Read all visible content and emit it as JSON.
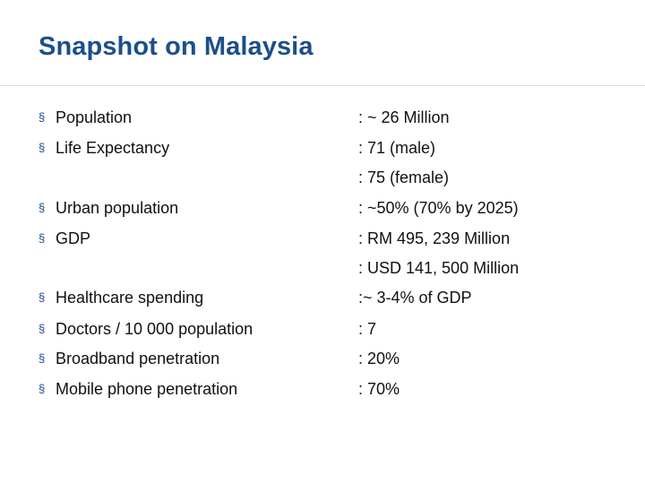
{
  "title": "Snapshot on Malaysia",
  "bullet_glyph": "§",
  "items": [
    {
      "label": "Population",
      "value": ": ~ 26 Million"
    },
    {
      "label": "Life Expectancy",
      "value": ": 71 (male)"
    },
    {
      "label": "",
      "value": ": 75 (female)"
    },
    {
      "label": "Urban population",
      "value": ": ~50% (70% by 2025)"
    },
    {
      "label": "GDP",
      "value": ": RM 495, 239 Million"
    },
    {
      "label": "",
      "value": ": USD 141, 500 Million"
    },
    {
      "label": "Healthcare spending",
      "value": ":~ 3-4% of GDP"
    },
    {
      "label": "Doctors / 10 000 population",
      "value": ": 7"
    },
    {
      "label": "Broadband penetration",
      "value": ": 20%"
    },
    {
      "label": "Mobile phone penetration",
      "value": ": 70%"
    }
  ],
  "colors": {
    "title": "#1b4f8a",
    "bullet": "#1b4f8a",
    "text": "#111111"
  }
}
